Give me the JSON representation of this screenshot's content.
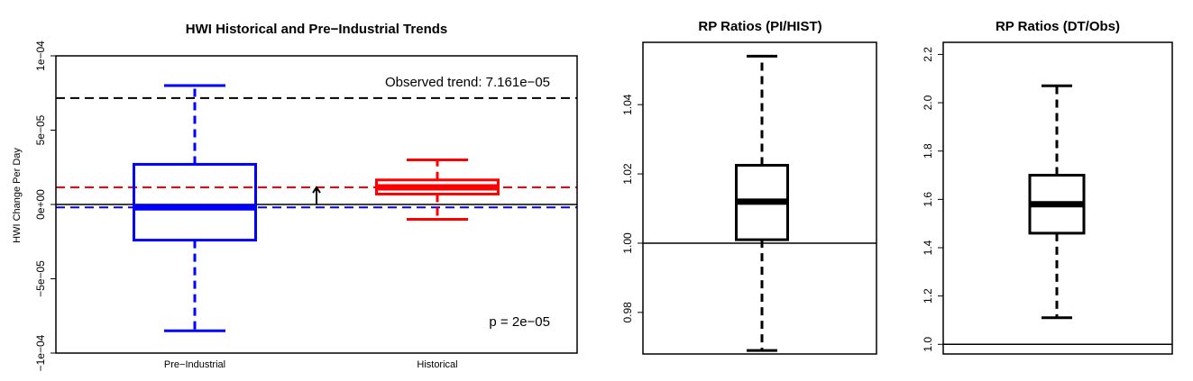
{
  "chart_data": [
    {
      "type": "box",
      "title": "HWI Historical and Pre−Industrial Trends",
      "xlabel": "",
      "ylabel": "HWI Change Per Day",
      "ylim": [
        -0.0001,
        0.0001
      ],
      "yticks": [
        -0.0001,
        -5e-05,
        0,
        5e-05,
        0.0001
      ],
      "ytick_labels": [
        "−1e−04",
        "−5e−05",
        "0e+00",
        "5e−05",
        "1e−04"
      ],
      "categories": [
        "Pre−Industrial",
        "Historical"
      ],
      "boxes": [
        {
          "name": "Pre−Industrial",
          "color": "#0000ff",
          "whisker_low": -8.5e-05,
          "q1": -2.4e-05,
          "median": -2e-06,
          "q3": 2.7e-05,
          "whisker_high": 8e-05
        },
        {
          "name": "Historical",
          "color": "#ff0000",
          "whisker_low": -1e-05,
          "q1": 7e-06,
          "median": 1.15e-05,
          "q3": 1.65e-05,
          "whisker_high": 3e-05
        }
      ],
      "reference_lines": [
        {
          "value": 7.161e-05,
          "color": "#000000",
          "style": "dashed"
        },
        {
          "value": 1.15e-05,
          "color": "#ff0000",
          "style": "dashed"
        },
        {
          "value": -2e-06,
          "color": "#0000ff",
          "style": "dashed"
        },
        {
          "value": 0,
          "color": "#000000",
          "style": "solid"
        }
      ],
      "arrow": {
        "from": 0,
        "to": 1.15e-05
      },
      "annotations": [
        {
          "text": "Observed trend: 7.161e−05",
          "position": "top-right"
        },
        {
          "text": "p = 2e−05",
          "position": "bottom-right"
        }
      ],
      "grid": false
    },
    {
      "type": "box",
      "title": "RP Ratios (PI/HIST)",
      "xlabel": "",
      "ylabel": "",
      "ylim": [
        0.968,
        1.058
      ],
      "yticks": [
        0.98,
        1.0,
        1.02,
        1.04
      ],
      "ytick_labels": [
        "0.98",
        "1.00",
        "1.02",
        "1.04"
      ],
      "boxes": [
        {
          "color": "#000000",
          "whisker_low": 0.969,
          "q1": 1.001,
          "median": 1.012,
          "q3": 1.0225,
          "whisker_high": 1.054
        }
      ],
      "reference_lines": [
        {
          "value": 1.0,
          "color": "#000000",
          "style": "solid"
        }
      ],
      "grid": false
    },
    {
      "type": "box",
      "title": "RP Ratios (DT/Obs)",
      "xlabel": "",
      "ylabel": "",
      "ylim": [
        0.96,
        2.25
      ],
      "yticks": [
        1.0,
        1.2,
        1.4,
        1.6,
        1.8,
        2.0,
        2.2
      ],
      "ytick_labels": [
        "1.0",
        "1.2",
        "1.4",
        "1.6",
        "1.8",
        "2.0",
        "2.2"
      ],
      "boxes": [
        {
          "color": "#000000",
          "whisker_low": 1.11,
          "q1": 1.46,
          "median": 1.58,
          "q3": 1.7,
          "whisker_high": 2.07
        }
      ],
      "reference_lines": [
        {
          "value": 1.0,
          "color": "#000000",
          "style": "solid"
        }
      ],
      "grid": false
    }
  ]
}
